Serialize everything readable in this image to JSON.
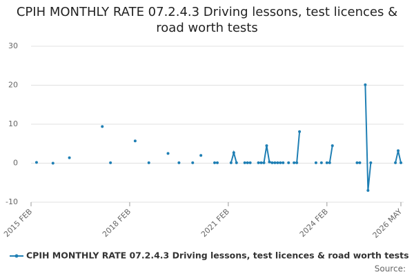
{
  "chart_data": {
    "type": "line",
    "title": "CPIH MONTHLY RATE 07.2.4.3 Driving lessons, test licences & road worth tests",
    "source": "Source:",
    "categories": [
      "2015 FEB",
      null,
      null,
      null,
      null,
      null,
      null,
      null,
      null,
      null,
      null,
      null,
      null,
      null,
      null,
      null,
      null,
      null,
      null,
      null,
      null,
      null,
      null,
      null,
      null,
      null,
      null,
      null,
      null,
      null,
      null,
      null,
      null,
      null,
      null,
      null,
      "2018 FEB",
      null,
      null,
      null,
      null,
      null,
      null,
      null,
      null,
      null,
      null,
      null,
      null,
      null,
      null,
      null,
      null,
      null,
      null,
      null,
      null,
      null,
      null,
      null,
      null,
      null,
      null,
      null,
      null,
      null,
      null,
      null,
      null,
      null,
      null,
      null,
      "2021 FEB",
      null,
      null,
      null,
      null,
      null,
      null,
      null,
      null,
      null,
      null,
      null,
      null,
      null,
      null,
      null,
      null,
      null,
      null,
      null,
      null,
      null,
      null,
      null,
      null,
      null,
      null,
      null,
      null,
      null,
      null,
      null,
      null,
      null,
      null,
      null,
      "2024 FEB",
      null,
      null,
      null,
      null,
      null,
      null,
      null,
      null,
      null,
      null,
      null,
      null,
      null,
      null,
      null,
      null,
      null,
      null,
      null,
      null,
      null,
      null,
      null,
      null,
      null,
      null,
      "2026 MAY"
    ],
    "series": [
      {
        "name": "CPIH MONTHLY RATE 07.2.4.3 Driving lessons, test licences & road worth tests",
        "color": "#1f7fb4",
        "values": [
          null,
          null,
          0.2,
          null,
          null,
          null,
          null,
          null,
          0,
          null,
          null,
          null,
          null,
          null,
          1.4,
          null,
          null,
          null,
          null,
          null,
          null,
          null,
          null,
          null,
          null,
          null,
          9.4,
          null,
          null,
          0.1,
          null,
          null,
          null,
          null,
          null,
          null,
          null,
          null,
          5.7,
          null,
          null,
          null,
          null,
          0.1,
          null,
          null,
          null,
          null,
          null,
          null,
          2.5,
          null,
          null,
          null,
          0.1,
          null,
          null,
          null,
          null,
          0.1,
          null,
          null,
          2.0,
          null,
          null,
          null,
          null,
          0.1,
          0.1,
          null,
          null,
          null,
          null,
          0.1,
          2.7,
          0.1,
          null,
          null,
          0.1,
          0.1,
          0.1,
          null,
          null,
          0.1,
          0.1,
          0.1,
          4.5,
          0.3,
          0.1,
          0.1,
          0.1,
          0.1,
          0.1,
          null,
          0.1,
          null,
          0.1,
          0.1,
          8.1,
          null,
          null,
          null,
          null,
          null,
          0.1,
          null,
          0.1,
          null,
          0.1,
          0.1,
          4.5,
          null,
          null,
          null,
          null,
          null,
          null,
          null,
          null,
          0.1,
          0.1,
          null,
          20.1,
          -7.0,
          0.1,
          null,
          null,
          null,
          null,
          null,
          null,
          null,
          null,
          0.1,
          3.2,
          0.1
        ]
      }
    ],
    "ylim": [
      -10,
      30
    ],
    "yticks": [
      -10,
      0,
      10,
      20,
      30
    ],
    "grid": true
  }
}
